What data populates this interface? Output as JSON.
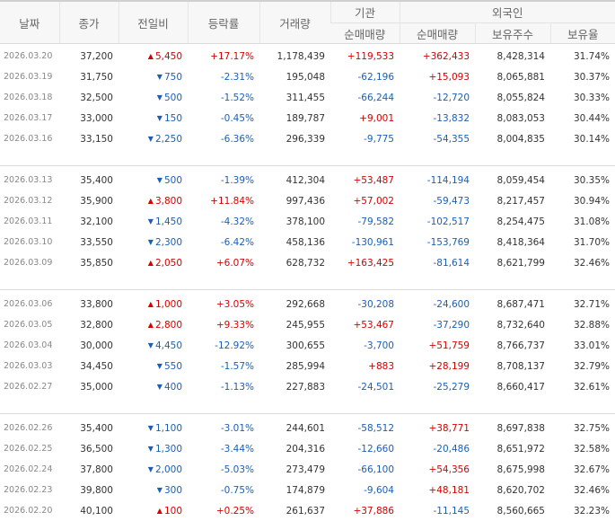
{
  "headers": {
    "date": "날짜",
    "close": "종가",
    "change": "전일비",
    "rate": "등락률",
    "volume": "거래량",
    "institution": "기관",
    "foreign": "외국인",
    "inst_net": "순매매량",
    "foreign_net": "순매매량",
    "foreign_hold": "보유주수",
    "foreign_ratio": "보유율"
  },
  "colors": {
    "up": "#d60000",
    "down": "#1b5fb5"
  },
  "groups": [
    [
      {
        "date": "2026.03.20",
        "close": "37,200",
        "dir": "up",
        "change": "5,450",
        "rate": "+17.17%",
        "volume": "1,178,439",
        "inst": "+119,533",
        "fnet": "+362,433",
        "fhold": "8,428,314",
        "fratio": "31.74%"
      },
      {
        "date": "2026.03.19",
        "close": "31,750",
        "dir": "down",
        "change": "750",
        "rate": "-2.31%",
        "volume": "195,048",
        "inst": "-62,196",
        "fnet": "+15,093",
        "fhold": "8,065,881",
        "fratio": "30.37%"
      },
      {
        "date": "2026.03.18",
        "close": "32,500",
        "dir": "down",
        "change": "500",
        "rate": "-1.52%",
        "volume": "311,455",
        "inst": "-66,244",
        "fnet": "-12,720",
        "fhold": "8,055,824",
        "fratio": "30.33%"
      },
      {
        "date": "2026.03.17",
        "close": "33,000",
        "dir": "down",
        "change": "150",
        "rate": "-0.45%",
        "volume": "189,787",
        "inst": "+9,001",
        "fnet": "-13,832",
        "fhold": "8,083,053",
        "fratio": "30.44%"
      },
      {
        "date": "2026.03.16",
        "close": "33,150",
        "dir": "down",
        "change": "2,250",
        "rate": "-6.36%",
        "volume": "296,339",
        "inst": "-9,775",
        "fnet": "-54,355",
        "fhold": "8,004,835",
        "fratio": "30.14%"
      }
    ],
    [
      {
        "date": "2026.03.13",
        "close": "35,400",
        "dir": "down",
        "change": "500",
        "rate": "-1.39%",
        "volume": "412,304",
        "inst": "+53,487",
        "fnet": "-114,194",
        "fhold": "8,059,454",
        "fratio": "30.35%"
      },
      {
        "date": "2026.03.12",
        "close": "35,900",
        "dir": "up",
        "change": "3,800",
        "rate": "+11.84%",
        "volume": "997,436",
        "inst": "+57,002",
        "fnet": "-59,473",
        "fhold": "8,217,457",
        "fratio": "30.94%"
      },
      {
        "date": "2026.03.11",
        "close": "32,100",
        "dir": "down",
        "change": "1,450",
        "rate": "-4.32%",
        "volume": "378,100",
        "inst": "-79,582",
        "fnet": "-102,517",
        "fhold": "8,254,475",
        "fratio": "31.08%"
      },
      {
        "date": "2026.03.10",
        "close": "33,550",
        "dir": "down",
        "change": "2,300",
        "rate": "-6.42%",
        "volume": "458,136",
        "inst": "-130,961",
        "fnet": "-153,769",
        "fhold": "8,418,364",
        "fratio": "31.70%"
      },
      {
        "date": "2026.03.09",
        "close": "35,850",
        "dir": "up",
        "change": "2,050",
        "rate": "+6.07%",
        "volume": "628,732",
        "inst": "+163,425",
        "fnet": "-81,614",
        "fhold": "8,621,799",
        "fratio": "32.46%"
      }
    ],
    [
      {
        "date": "2026.03.06",
        "close": "33,800",
        "dir": "up",
        "change": "1,000",
        "rate": "+3.05%",
        "volume": "292,668",
        "inst": "-30,208",
        "fnet": "-24,600",
        "fhold": "8,687,471",
        "fratio": "32.71%"
      },
      {
        "date": "2026.03.05",
        "close": "32,800",
        "dir": "up",
        "change": "2,800",
        "rate": "+9.33%",
        "volume": "245,955",
        "inst": "+53,467",
        "fnet": "-37,290",
        "fhold": "8,732,640",
        "fratio": "32.88%"
      },
      {
        "date": "2026.03.04",
        "close": "30,000",
        "dir": "down",
        "change": "4,450",
        "rate": "-12.92%",
        "volume": "300,655",
        "inst": "-3,700",
        "fnet": "+51,759",
        "fhold": "8,766,737",
        "fratio": "33.01%"
      },
      {
        "date": "2026.03.03",
        "close": "34,450",
        "dir": "down",
        "change": "550",
        "rate": "-1.57%",
        "volume": "285,994",
        "inst": "+883",
        "fnet": "+28,199",
        "fhold": "8,708,137",
        "fratio": "32.79%"
      },
      {
        "date": "2026.02.27",
        "close": "35,000",
        "dir": "down",
        "change": "400",
        "rate": "-1.13%",
        "volume": "227,883",
        "inst": "-24,501",
        "fnet": "-25,279",
        "fhold": "8,660,417",
        "fratio": "32.61%"
      }
    ],
    [
      {
        "date": "2026.02.26",
        "close": "35,400",
        "dir": "down",
        "change": "1,100",
        "rate": "-3.01%",
        "volume": "244,601",
        "inst": "-58,512",
        "fnet": "+38,771",
        "fhold": "8,697,838",
        "fratio": "32.75%"
      },
      {
        "date": "2026.02.25",
        "close": "36,500",
        "dir": "down",
        "change": "1,300",
        "rate": "-3.44%",
        "volume": "204,316",
        "inst": "-12,660",
        "fnet": "-20,486",
        "fhold": "8,651,972",
        "fratio": "32.58%"
      },
      {
        "date": "2026.02.24",
        "close": "37,800",
        "dir": "down",
        "change": "2,000",
        "rate": "-5.03%",
        "volume": "273,479",
        "inst": "-66,100",
        "fnet": "+54,356",
        "fhold": "8,675,998",
        "fratio": "32.67%"
      },
      {
        "date": "2026.02.23",
        "close": "39,800",
        "dir": "down",
        "change": "300",
        "rate": "-0.75%",
        "volume": "174,879",
        "inst": "-9,604",
        "fnet": "+48,181",
        "fhold": "8,620,702",
        "fratio": "32.46%"
      },
      {
        "date": "2026.02.20",
        "close": "40,100",
        "dir": "up",
        "change": "100",
        "rate": "+0.25%",
        "volume": "261,637",
        "inst": "+37,886",
        "fnet": "-11,145",
        "fhold": "8,560,665",
        "fratio": "32.23%"
      }
    ]
  ]
}
